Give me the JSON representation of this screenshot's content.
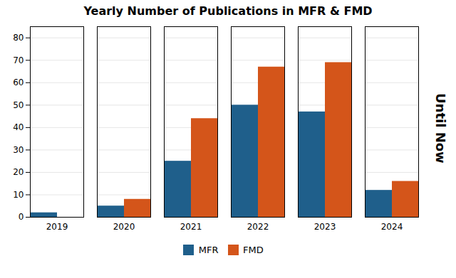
{
  "chart_data": {
    "type": "bar",
    "title": "Yearly Number of Publications in MFR & FMD",
    "categories": [
      "2019",
      "2020",
      "2021",
      "2022",
      "2023",
      "2024"
    ],
    "series": [
      {
        "name": "MFR",
        "color": "#1f5f8b",
        "values": [
          2,
          5,
          25,
          50,
          47,
          12
        ]
      },
      {
        "name": "FMD",
        "color": "#d4551a",
        "values": [
          0,
          8,
          44,
          67,
          69,
          16
        ]
      }
    ],
    "ylim": [
      0,
      85
    ],
    "yticks": [
      0,
      10,
      20,
      30,
      40,
      50,
      60,
      70,
      80
    ],
    "grid": true,
    "legend": "bottom",
    "annotation": "Until Now"
  }
}
